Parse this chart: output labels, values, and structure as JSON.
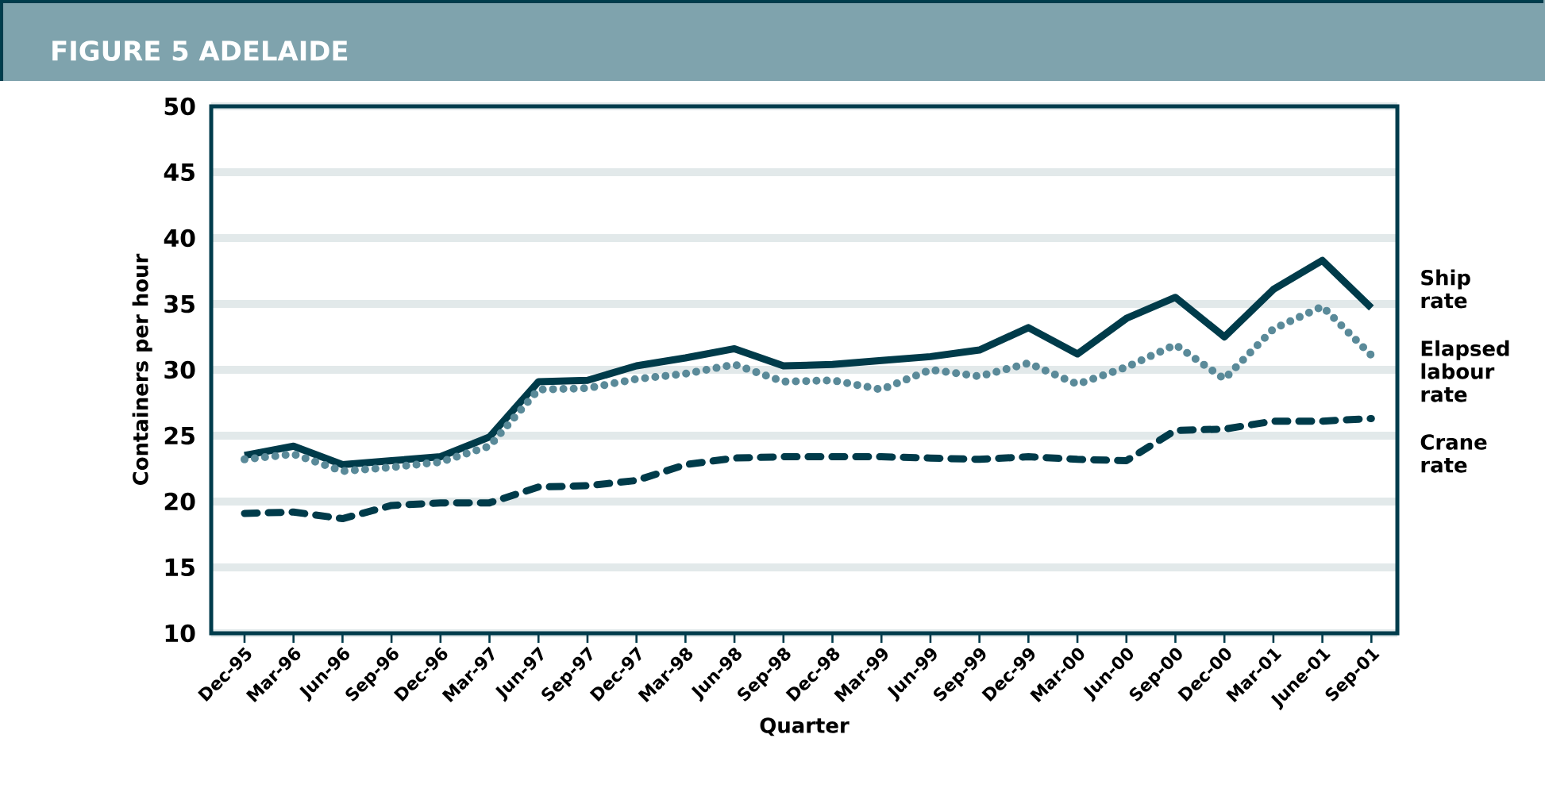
{
  "chart_data": {
    "type": "line",
    "title": "FIGURE 5 ADELAIDE",
    "xlabel": "Quarter",
    "ylabel": "Containers per hour",
    "categories": [
      "Dec-95",
      "Mar-96",
      "Jun-96",
      "Sep-96",
      "Dec-96",
      "Mar-97",
      "Jun-97",
      "Sep-97",
      "Dec-97",
      "Mar-98",
      "Jun-98",
      "Sep-98",
      "Dec-98",
      "Mar-99",
      "Jun-99",
      "Sep-99",
      "Dec-99",
      "Mar-00",
      "Jun-00",
      "Sep-00",
      "Dec-00",
      "Mar-01",
      "June-01",
      "Sep-01"
    ],
    "series": [
      {
        "name": "Ship rate",
        "color": "#003b4a",
        "line_style": "solid",
        "values": [
          23.5,
          24.2,
          22.8,
          23.1,
          23.4,
          24.9,
          29.1,
          29.2,
          30.3,
          30.9,
          31.6,
          30.3,
          30.4,
          30.7,
          31.0,
          31.5,
          33.2,
          31.2,
          33.9,
          35.5,
          32.5,
          36.1,
          38.3,
          34.7
        ]
      },
      {
        "name": "Elapsed labour rate",
        "color": "#5a8a99",
        "line_style": "dotted",
        "values": [
          23.2,
          23.6,
          22.3,
          22.6,
          23.0,
          24.2,
          28.5,
          28.6,
          29.3,
          29.7,
          30.4,
          29.1,
          29.2,
          28.5,
          30.0,
          29.5,
          30.5,
          28.9,
          30.2,
          31.9,
          29.3,
          33.1,
          34.8,
          31.1
        ]
      },
      {
        "name": "Crane rate",
        "color": "#003b4a",
        "line_style": "dashed",
        "values": [
          19.1,
          19.2,
          18.7,
          19.7,
          19.9,
          19.9,
          21.1,
          21.2,
          21.6,
          22.8,
          23.3,
          23.4,
          23.4,
          23.4,
          23.3,
          23.2,
          23.4,
          23.2,
          23.1,
          25.4,
          25.5,
          26.1,
          26.1,
          26.3
        ]
      }
    ],
    "ylim": [
      10,
      50
    ],
    "yticks": [
      10,
      15,
      20,
      25,
      30,
      35,
      40,
      45,
      50
    ],
    "grid": "y",
    "legend": false
  }
}
